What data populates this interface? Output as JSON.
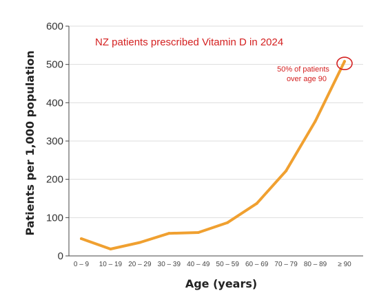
{
  "chart_data": {
    "type": "line",
    "title": "NZ patients prescribed Vitamin D in 2024",
    "xlabel": "Age (years)",
    "ylabel": "Patients per 1,000 population",
    "categories": [
      "0 – 9",
      "10 – 19",
      "20 – 29",
      "30 – 39",
      "40 – 49",
      "50 – 59",
      "60 – 69",
      "70 – 79",
      "80 – 89",
      "≥ 90"
    ],
    "values": [
      45,
      18,
      35,
      59,
      61,
      87,
      137,
      222,
      352,
      508
    ],
    "yticks": [
      0,
      100,
      200,
      300,
      400,
      500,
      600
    ],
    "ylim": [
      0,
      600
    ],
    "grid": "horizontal",
    "annotation": {
      "lines": [
        "50% of patients",
        "over age 90"
      ],
      "target_category": "≥ 90"
    },
    "colors": {
      "line": "#f0a030",
      "annotation": "#d42020",
      "grid": "#dddddd"
    }
  }
}
